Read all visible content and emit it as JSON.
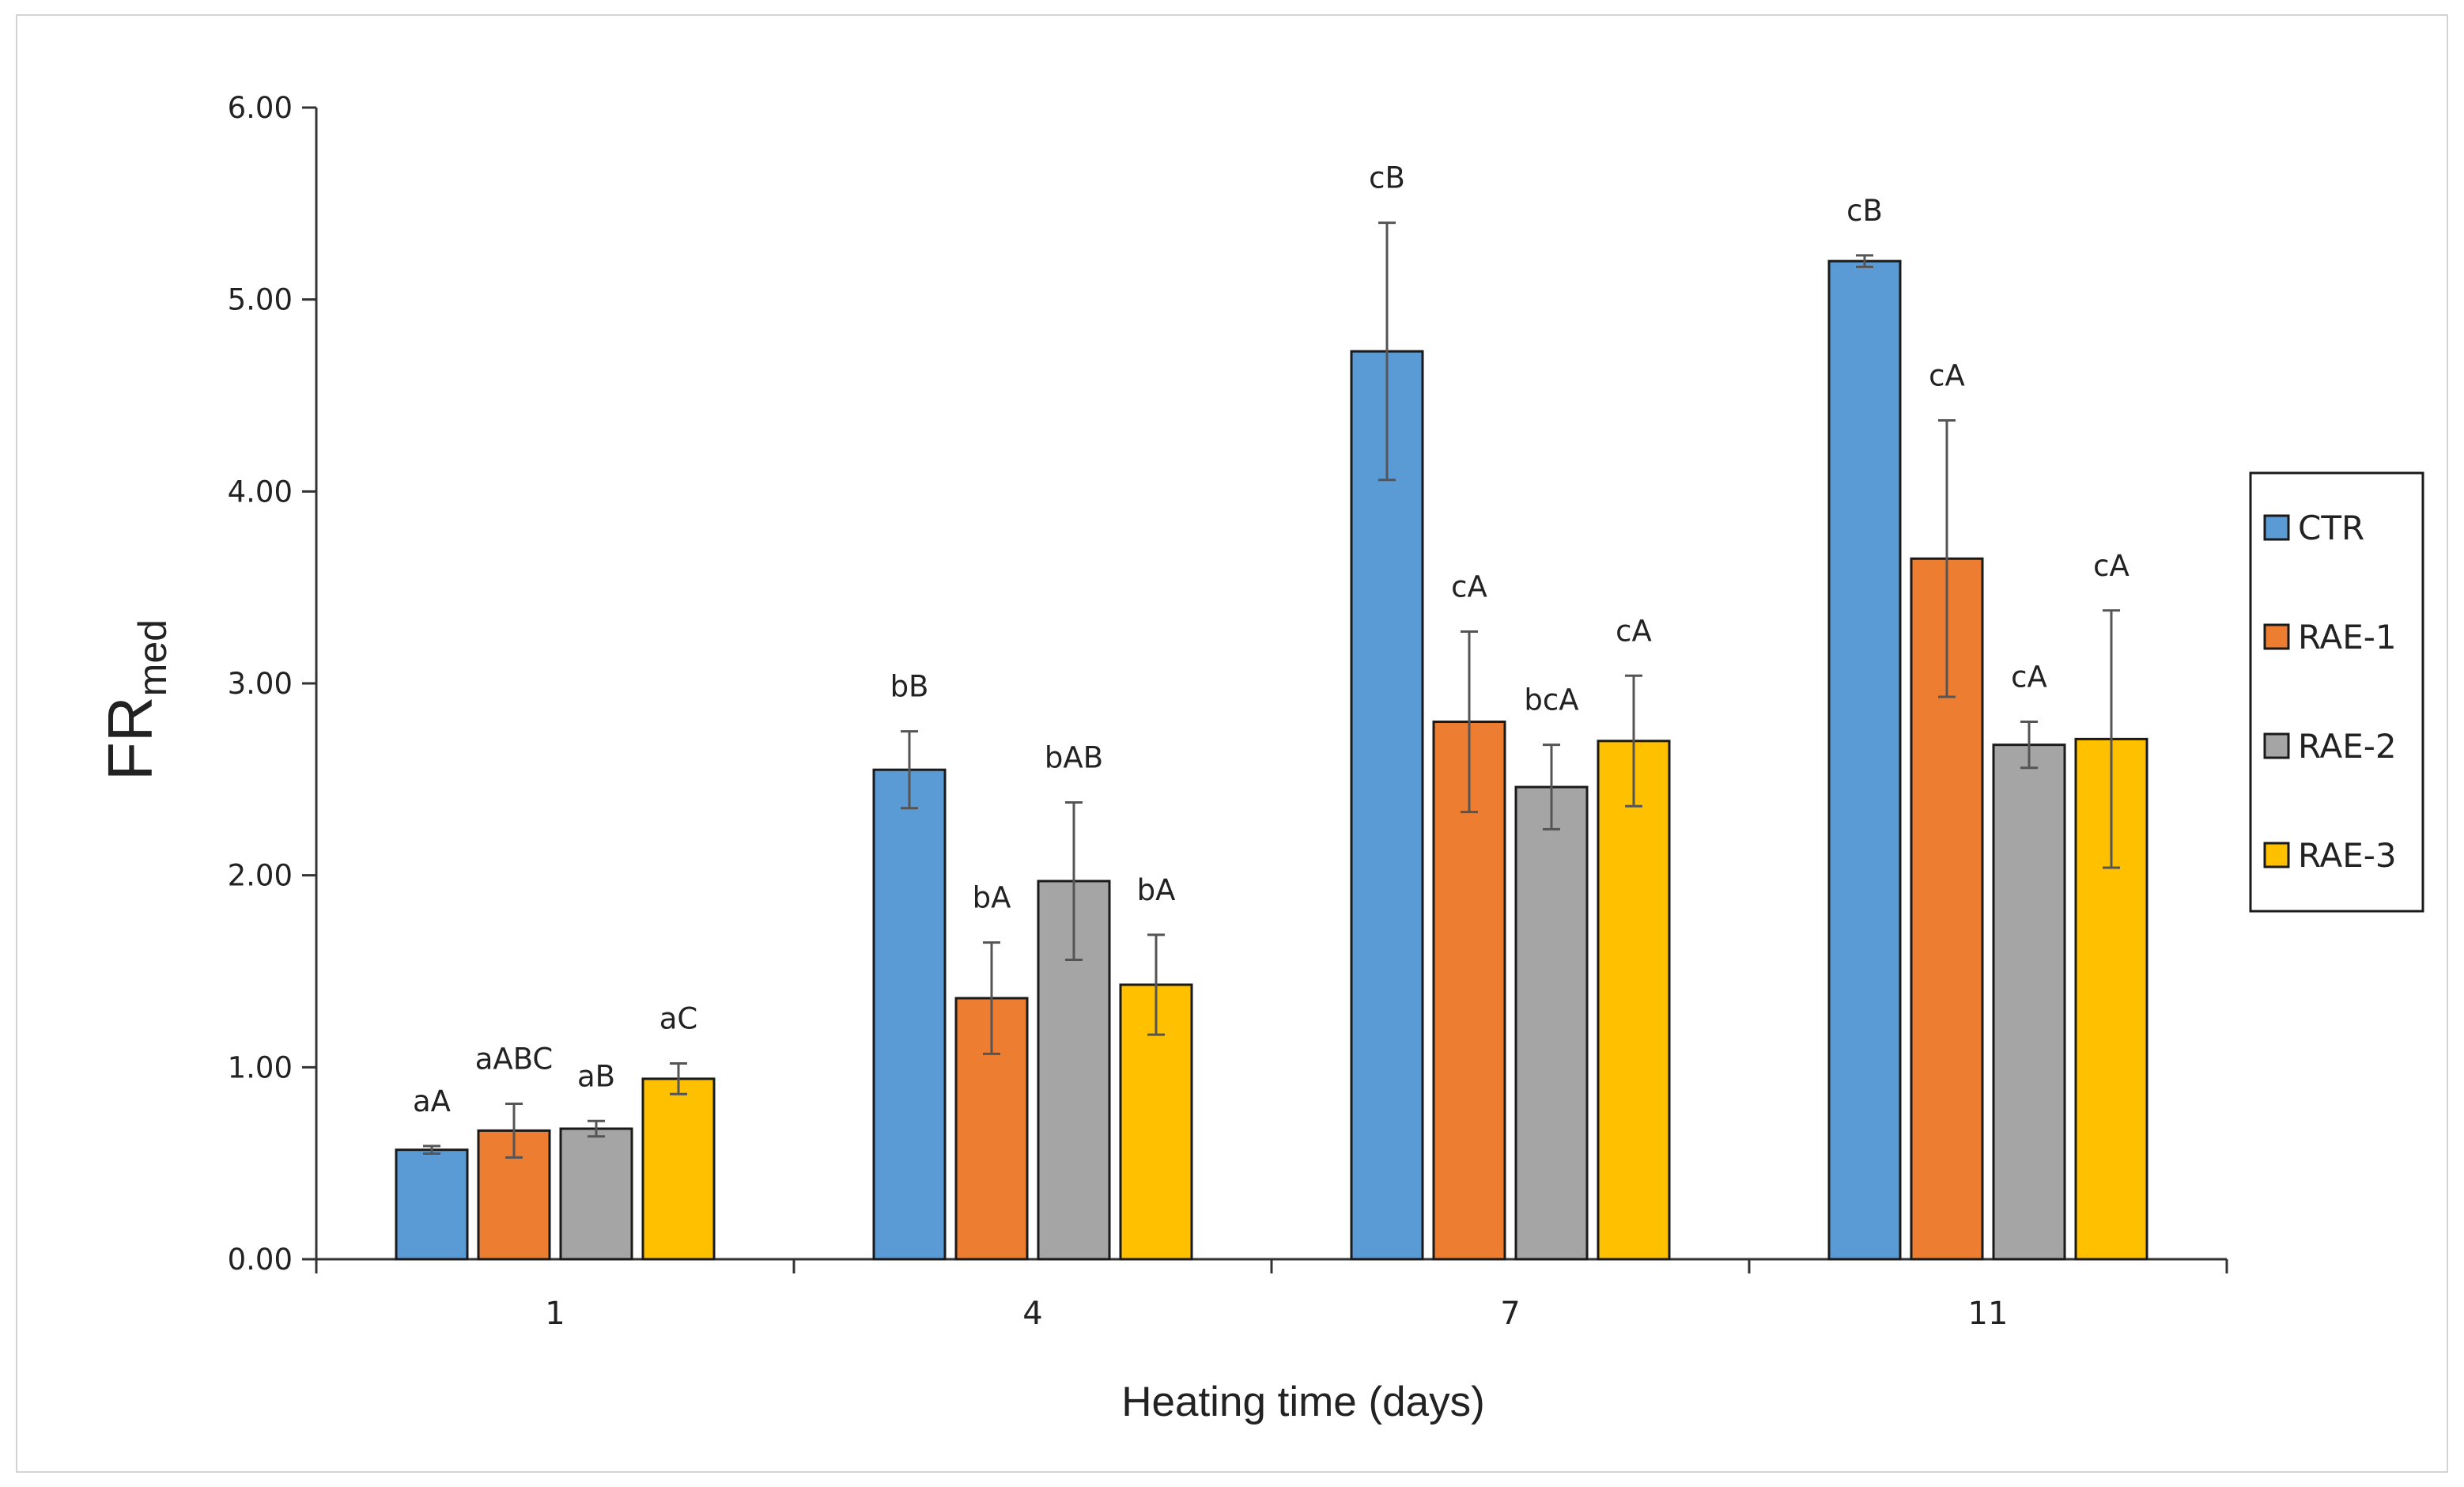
{
  "chart_data": {
    "type": "bar",
    "xlabel": "Heating time (days)",
    "ylabel": {
      "main": "FR",
      "subscript": "med"
    },
    "categories": [
      "1",
      "4",
      "7",
      "11"
    ],
    "ylim": [
      0,
      6
    ],
    "yticks": [
      "0.00",
      "1.00",
      "2.00",
      "3.00",
      "4.00",
      "5.00",
      "6.00"
    ],
    "grid": false,
    "legend_position": "right",
    "series": [
      {
        "name": "CTR",
        "color": "#5b9bd5",
        "values": [
          0.57,
          2.55,
          4.73,
          5.2
        ],
        "errors": [
          0.02,
          0.2,
          0.67,
          0.03
        ],
        "labels": [
          "aA",
          "bB",
          "cB",
          "cB"
        ]
      },
      {
        "name": "RAE-1",
        "color": "#ed7d31",
        "values": [
          0.67,
          1.36,
          2.8,
          3.65
        ],
        "errors": [
          0.14,
          0.29,
          0.47,
          0.72
        ],
        "labels": [
          "aABC",
          "bA",
          "cA",
          "cA"
        ]
      },
      {
        "name": "RAE-2",
        "color": "#a5a5a5",
        "values": [
          0.68,
          1.97,
          2.46,
          2.68
        ],
        "errors": [
          0.04,
          0.41,
          0.22,
          0.12
        ],
        "labels": [
          "aB",
          "bAB",
          "bcA",
          "cA"
        ]
      },
      {
        "name": "RAE-3",
        "color": "#ffc000",
        "values": [
          0.94,
          1.43,
          2.7,
          2.71
        ],
        "errors": [
          0.08,
          0.26,
          0.34,
          0.67
        ],
        "labels": [
          "aC",
          "bA",
          "cA",
          "cA"
        ]
      }
    ]
  }
}
